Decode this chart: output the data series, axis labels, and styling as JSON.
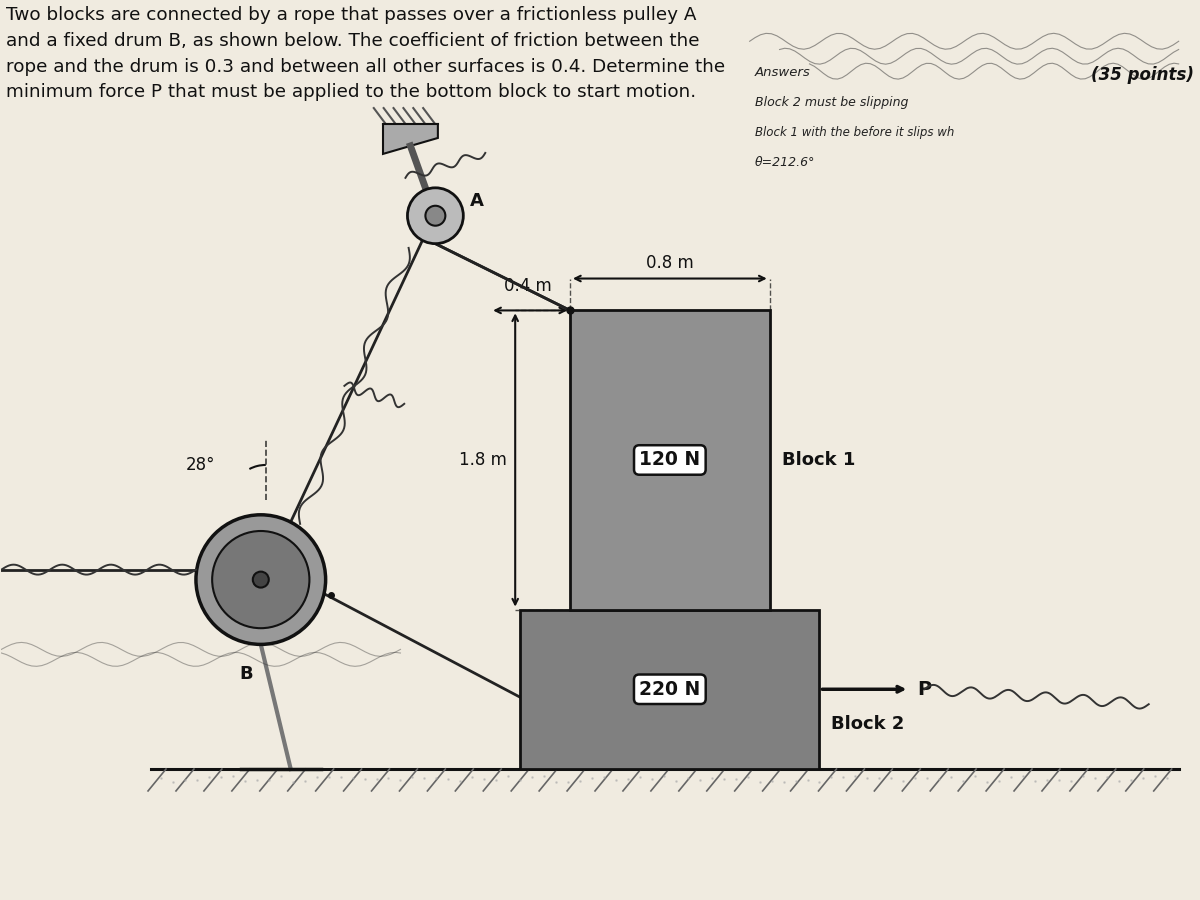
{
  "bg_color": "#f0ebe0",
  "title_text": "Two blocks are connected by a rope that passes over a frictionless pulley A\nand a fixed drum B, as shown below. The coefficient of friction between the\nrope and the drum is 0.3 and between all other surfaces is 0.4. Determine the\nminimum force P that must be applied to the bottom block to start motion.",
  "points_text": "(35 points)",
  "dim_08": "0.8 m",
  "dim_04": "0.4 m",
  "dim_18": "1.8 m",
  "angle_text": "28°",
  "label_A": "A",
  "label_B": "B",
  "label_120N": "120 N",
  "label_220N": "220 N",
  "label_block1": "Block 1",
  "label_block2": "Block 2",
  "label_P": "P",
  "text_color": "#111111",
  "line_color": "#111111",
  "block1_face": "#909090",
  "block2_face": "#808080",
  "pulley_face": "#bbbbbb",
  "drum_face": "#999999",
  "ground_color": "#888888",
  "wall_color": "#777777",
  "nail_color": "#555555",
  "rope_color": "#222222",
  "coil_color": "#333333"
}
